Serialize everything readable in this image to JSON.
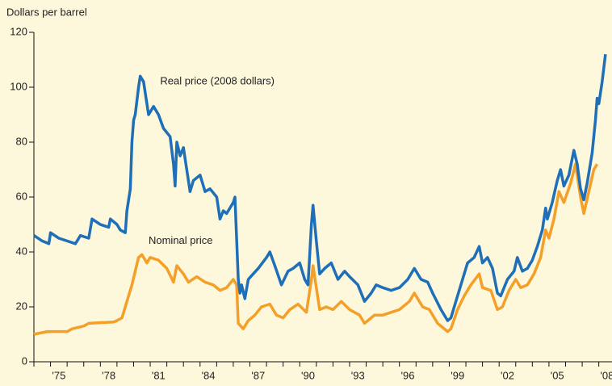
{
  "chart_data": {
    "type": "line",
    "y_axis_label": "Dollars per barrel",
    "xlim": [
      1974,
      2008.6
    ],
    "ylim": [
      0,
      120
    ],
    "yticks": [
      0,
      20,
      40,
      60,
      80,
      100,
      120
    ],
    "xticks": [
      {
        "value": 1975.5,
        "label": "'75"
      },
      {
        "value": 1978.5,
        "label": "'78"
      },
      {
        "value": 1981.5,
        "label": "'81"
      },
      {
        "value": 1984.5,
        "label": "'84"
      },
      {
        "value": 1987.5,
        "label": "'87"
      },
      {
        "value": 1990.5,
        "label": "'90"
      },
      {
        "value": 1993.5,
        "label": "'93"
      },
      {
        "value": 1996.5,
        "label": "'96"
      },
      {
        "value": 1999.5,
        "label": "'99"
      },
      {
        "value": 2002.5,
        "label": "'02"
      },
      {
        "value": 2005.5,
        "label": "'05"
      },
      {
        "value": 2008.5,
        "label": "'08"
      }
    ],
    "xminorticks": [
      1974,
      1975,
      1976,
      1977,
      1978,
      1979,
      1980,
      1981,
      1982,
      1983,
      1984,
      1985,
      1986,
      1987,
      1988,
      1989,
      1990,
      1991,
      1992,
      1993,
      1994,
      1995,
      1996,
      1997,
      1998,
      1999,
      2000,
      2001,
      2002,
      2003,
      2004,
      2005,
      2006,
      2007,
      2008
    ],
    "annotations": [
      {
        "text": "Real price (2008 dollars)",
        "x": 1981.6,
        "y": 102
      },
      {
        "text": "Nominal price",
        "x": 1980.9,
        "y": 44
      }
    ],
    "series": [
      {
        "name": "Real price (2008 dollars)",
        "color": "#1f6fb8",
        "x": [
          1974.0,
          1974.5,
          1974.9,
          1975.0,
          1975.5,
          1976.0,
          1976.5,
          1976.8,
          1977.3,
          1977.5,
          1978.0,
          1978.5,
          1978.6,
          1979.0,
          1979.2,
          1979.5,
          1979.6,
          1979.8,
          1979.9,
          1980.0,
          1980.1,
          1980.3,
          1980.4,
          1980.6,
          1980.9,
          1981.2,
          1981.5,
          1981.8,
          1982.2,
          1982.4,
          1982.5,
          1982.6,
          1982.8,
          1983.0,
          1983.2,
          1983.4,
          1983.6,
          1984.0,
          1984.3,
          1984.6,
          1985.0,
          1985.2,
          1985.4,
          1985.6,
          1986.0,
          1986.1,
          1986.3,
          1986.4,
          1986.5,
          1986.7,
          1986.9,
          1987.2,
          1987.5,
          1988.0,
          1988.2,
          1988.5,
          1988.9,
          1989.3,
          1989.6,
          1990.0,
          1990.3,
          1990.5,
          1990.7,
          1990.8,
          1991.0,
          1991.2,
          1991.5,
          1991.9,
          1992.3,
          1992.7,
          1993.0,
          1993.5,
          1993.9,
          1994.3,
          1994.6,
          1995.0,
          1995.5,
          1996.0,
          1996.5,
          1996.9,
          1997.3,
          1997.7,
          1998.0,
          1998.5,
          1998.9,
          1999.1,
          1999.5,
          1999.8,
          2000.1,
          2000.5,
          2000.8,
          2001.0,
          2001.3,
          2001.6,
          2001.9,
          2002.1,
          2002.5,
          2002.9,
          2003.1,
          2003.4,
          2003.7,
          2004.0,
          2004.3,
          2004.6,
          2004.8,
          2004.9,
          2005.2,
          2005.5,
          2005.7,
          2005.9,
          2006.2,
          2006.5,
          2006.7,
          2006.9,
          2007.1,
          2007.3,
          2007.6,
          2007.8,
          2007.9,
          2008.0,
          2008.2,
          2008.4
        ],
        "values": [
          46,
          44,
          43,
          47,
          45,
          44,
          43,
          46,
          45,
          52,
          50,
          49,
          52,
          50,
          48,
          47,
          55,
          63,
          80,
          88,
          90,
          100,
          104,
          102,
          90,
          93,
          90,
          85,
          82,
          72,
          64,
          80,
          75,
          78,
          70,
          62,
          66,
          68,
          62,
          63,
          60,
          52,
          55,
          54,
          58,
          60,
          30,
          25,
          28,
          23,
          30,
          32,
          34,
          38,
          40,
          35,
          28,
          33,
          34,
          36,
          30,
          28,
          50,
          57,
          44,
          32,
          34,
          36,
          30,
          33,
          31,
          28,
          22,
          25,
          28,
          27,
          26,
          27,
          30,
          34,
          30,
          29,
          25,
          19,
          15,
          16,
          24,
          30,
          36,
          38,
          42,
          36,
          38,
          34,
          25,
          24,
          30,
          33,
          38,
          33,
          34,
          37,
          42,
          48,
          56,
          52,
          58,
          66,
          70,
          64,
          68,
          77,
          72,
          63,
          59,
          65,
          76,
          88,
          96,
          94,
          102,
          112
        ]
      },
      {
        "name": "Nominal price",
        "color": "#f4a028",
        "x": [
          1974.0,
          1974.8,
          1976.0,
          1976.3,
          1977.0,
          1977.3,
          1978.8,
          1979.0,
          1979.3,
          1979.6,
          1979.9,
          1980.1,
          1980.3,
          1980.5,
          1980.8,
          1981.0,
          1981.5,
          1982.0,
          1982.4,
          1982.6,
          1983.0,
          1983.3,
          1983.8,
          1984.3,
          1984.8,
          1985.2,
          1985.6,
          1986.0,
          1986.2,
          1986.3,
          1986.6,
          1986.9,
          1987.3,
          1987.7,
          1988.2,
          1988.6,
          1989.0,
          1989.4,
          1989.9,
          1990.4,
          1990.7,
          1990.8,
          1991.0,
          1991.2,
          1991.6,
          1992.0,
          1992.5,
          1993.0,
          1993.6,
          1993.9,
          1994.5,
          1995.0,
          1995.5,
          1996.0,
          1996.6,
          1996.9,
          1997.4,
          1997.8,
          1998.3,
          1998.9,
          1999.1,
          1999.5,
          1999.9,
          2000.3,
          2000.8,
          2001.0,
          2001.5,
          2001.9,
          2002.2,
          2002.6,
          2003.0,
          2003.3,
          2003.7,
          2004.1,
          2004.5,
          2004.8,
          2005.0,
          2005.3,
          2005.6,
          2005.9,
          2006.3,
          2006.6,
          2006.9,
          2007.1,
          2007.4,
          2007.7,
          2007.9
        ],
        "values": [
          10,
          11,
          11,
          12,
          13,
          14,
          14.5,
          15,
          16,
          22,
          28,
          33,
          38,
          39,
          36,
          38,
          37,
          34,
          29,
          35,
          32,
          29,
          31,
          29,
          28,
          26,
          27,
          30,
          28,
          14,
          12,
          15,
          17,
          20,
          21,
          17,
          16,
          19,
          21,
          18,
          30,
          35,
          27,
          19,
          20,
          19,
          22,
          19,
          17,
          14,
          17,
          17,
          18,
          19,
          22,
          25,
          20,
          19,
          14,
          11,
          12,
          19,
          24,
          28,
          32,
          27,
          26,
          19,
          20,
          26,
          30,
          27,
          28,
          32,
          38,
          48,
          45,
          52,
          62,
          58,
          65,
          72,
          60,
          54,
          62,
          70,
          72
        ]
      }
    ]
  }
}
